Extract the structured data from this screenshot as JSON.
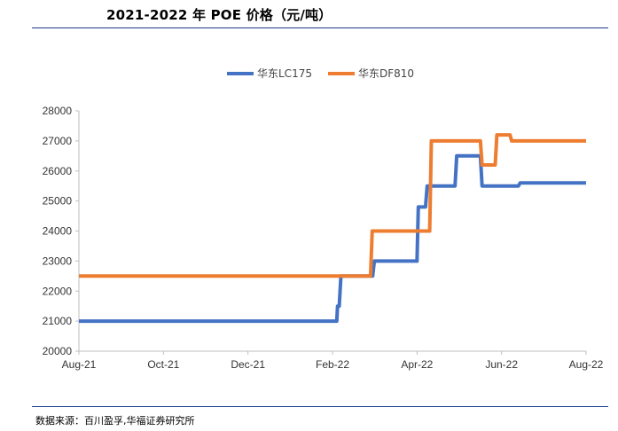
{
  "header": {
    "title": "2021-2022 年 POE 价格（元/吨）"
  },
  "footer": {
    "source": "数据来源：百川盈孚,华福证券研究所"
  },
  "chart_data": {
    "type": "line",
    "title": "2021-2022 年 POE 价格（元/吨）",
    "xlabel": "",
    "ylabel": "",
    "x_tick_labels": [
      "Aug-21",
      "Oct-21",
      "Dec-21",
      "Feb-22",
      "Apr-22",
      "Jun-22",
      "Aug-22"
    ],
    "x_tick_months": [
      0,
      2,
      4,
      6,
      8,
      10,
      12
    ],
    "x_range": [
      0,
      12
    ],
    "y_ticks": [
      20000,
      21000,
      22000,
      23000,
      24000,
      25000,
      26000,
      27000,
      28000
    ],
    "y_tick_labels": [
      "20000",
      "21000",
      "22000",
      "23000",
      "24000",
      "25000",
      "26000",
      "27000",
      "28000"
    ],
    "ylim": [
      20000,
      28000
    ],
    "grid": false,
    "legend_position": "top-center",
    "series": [
      {
        "name": "华东LC175",
        "color": "#4472c4",
        "points": [
          [
            0,
            21000
          ],
          [
            6.1,
            21000
          ],
          [
            6.12,
            21500
          ],
          [
            6.16,
            21500
          ],
          [
            6.2,
            22500
          ],
          [
            6.95,
            22500
          ],
          [
            6.99,
            23000
          ],
          [
            8.0,
            23000
          ],
          [
            8.03,
            24800
          ],
          [
            8.2,
            24800
          ],
          [
            8.24,
            25500
          ],
          [
            8.9,
            25500
          ],
          [
            8.94,
            26500
          ],
          [
            9.5,
            26500
          ],
          [
            9.54,
            25500
          ],
          [
            10.4,
            25500
          ],
          [
            10.44,
            25600
          ],
          [
            12.0,
            25600
          ]
        ]
      },
      {
        "name": "华东DF810",
        "color": "#ed7d31",
        "points": [
          [
            0,
            22500
          ],
          [
            6.9,
            22500
          ],
          [
            6.94,
            24000
          ],
          [
            8.3,
            24000
          ],
          [
            8.34,
            27000
          ],
          [
            9.5,
            27000
          ],
          [
            9.54,
            26200
          ],
          [
            9.85,
            26200
          ],
          [
            9.89,
            27200
          ],
          [
            10.2,
            27200
          ],
          [
            10.24,
            27000
          ],
          [
            12.0,
            27000
          ]
        ]
      }
    ]
  }
}
